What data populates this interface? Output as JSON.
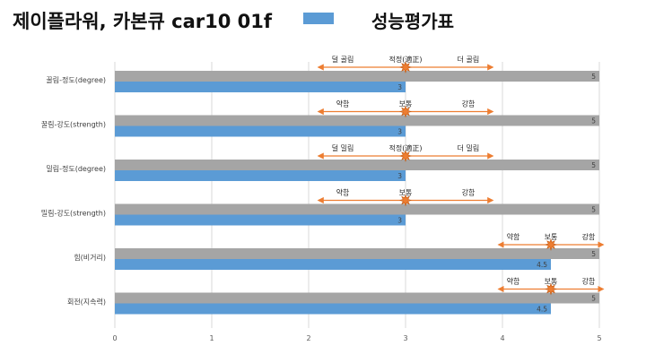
{
  "header": {
    "title": "제이플라워, 카본큐 car10 01f",
    "legend_label": "성능평가표",
    "legend_color": "#5b9bd5"
  },
  "chart_data": {
    "type": "bar",
    "orientation": "horizontal",
    "categories": [
      "꿀림-정도(degree)",
      "꿀림-강도(strength)",
      "밀림-정도(degree)",
      "밀림-강도(strength)",
      "힘(비거리)",
      "회전(지속력)"
    ],
    "series": [
      {
        "name": "",
        "color": "#a5a5a5",
        "values": [
          5,
          5,
          5,
          5,
          5,
          5
        ]
      },
      {
        "name": "성능평가표",
        "color": "#5b9bd5",
        "values": [
          3,
          3,
          3,
          3,
          4.5,
          4.5
        ]
      }
    ],
    "xlim": [
      0,
      5
    ],
    "xticks": [
      "0",
      "1",
      "2",
      "3",
      "4",
      "5"
    ],
    "grid": true,
    "annotations": [
      {
        "left": "덜 골림",
        "mid": "적정(適正)",
        "right": "더 골림",
        "marker": 3
      },
      {
        "left": "약함",
        "mid": "보통",
        "right": "강함",
        "marker": 3
      },
      {
        "left": "덜 밀림",
        "mid": "적정(適正)",
        "right": "더 밀림",
        "marker": 3
      },
      {
        "left": "약함",
        "mid": "보통",
        "right": "강함",
        "marker": 3
      },
      {
        "left": "약함",
        "mid": "보통",
        "right": "강함",
        "marker": 4.5
      },
      {
        "left": "약함",
        "mid": "보통",
        "right": "강함",
        "marker": 4.5
      }
    ],
    "annotation_color": "#ed7d31"
  }
}
